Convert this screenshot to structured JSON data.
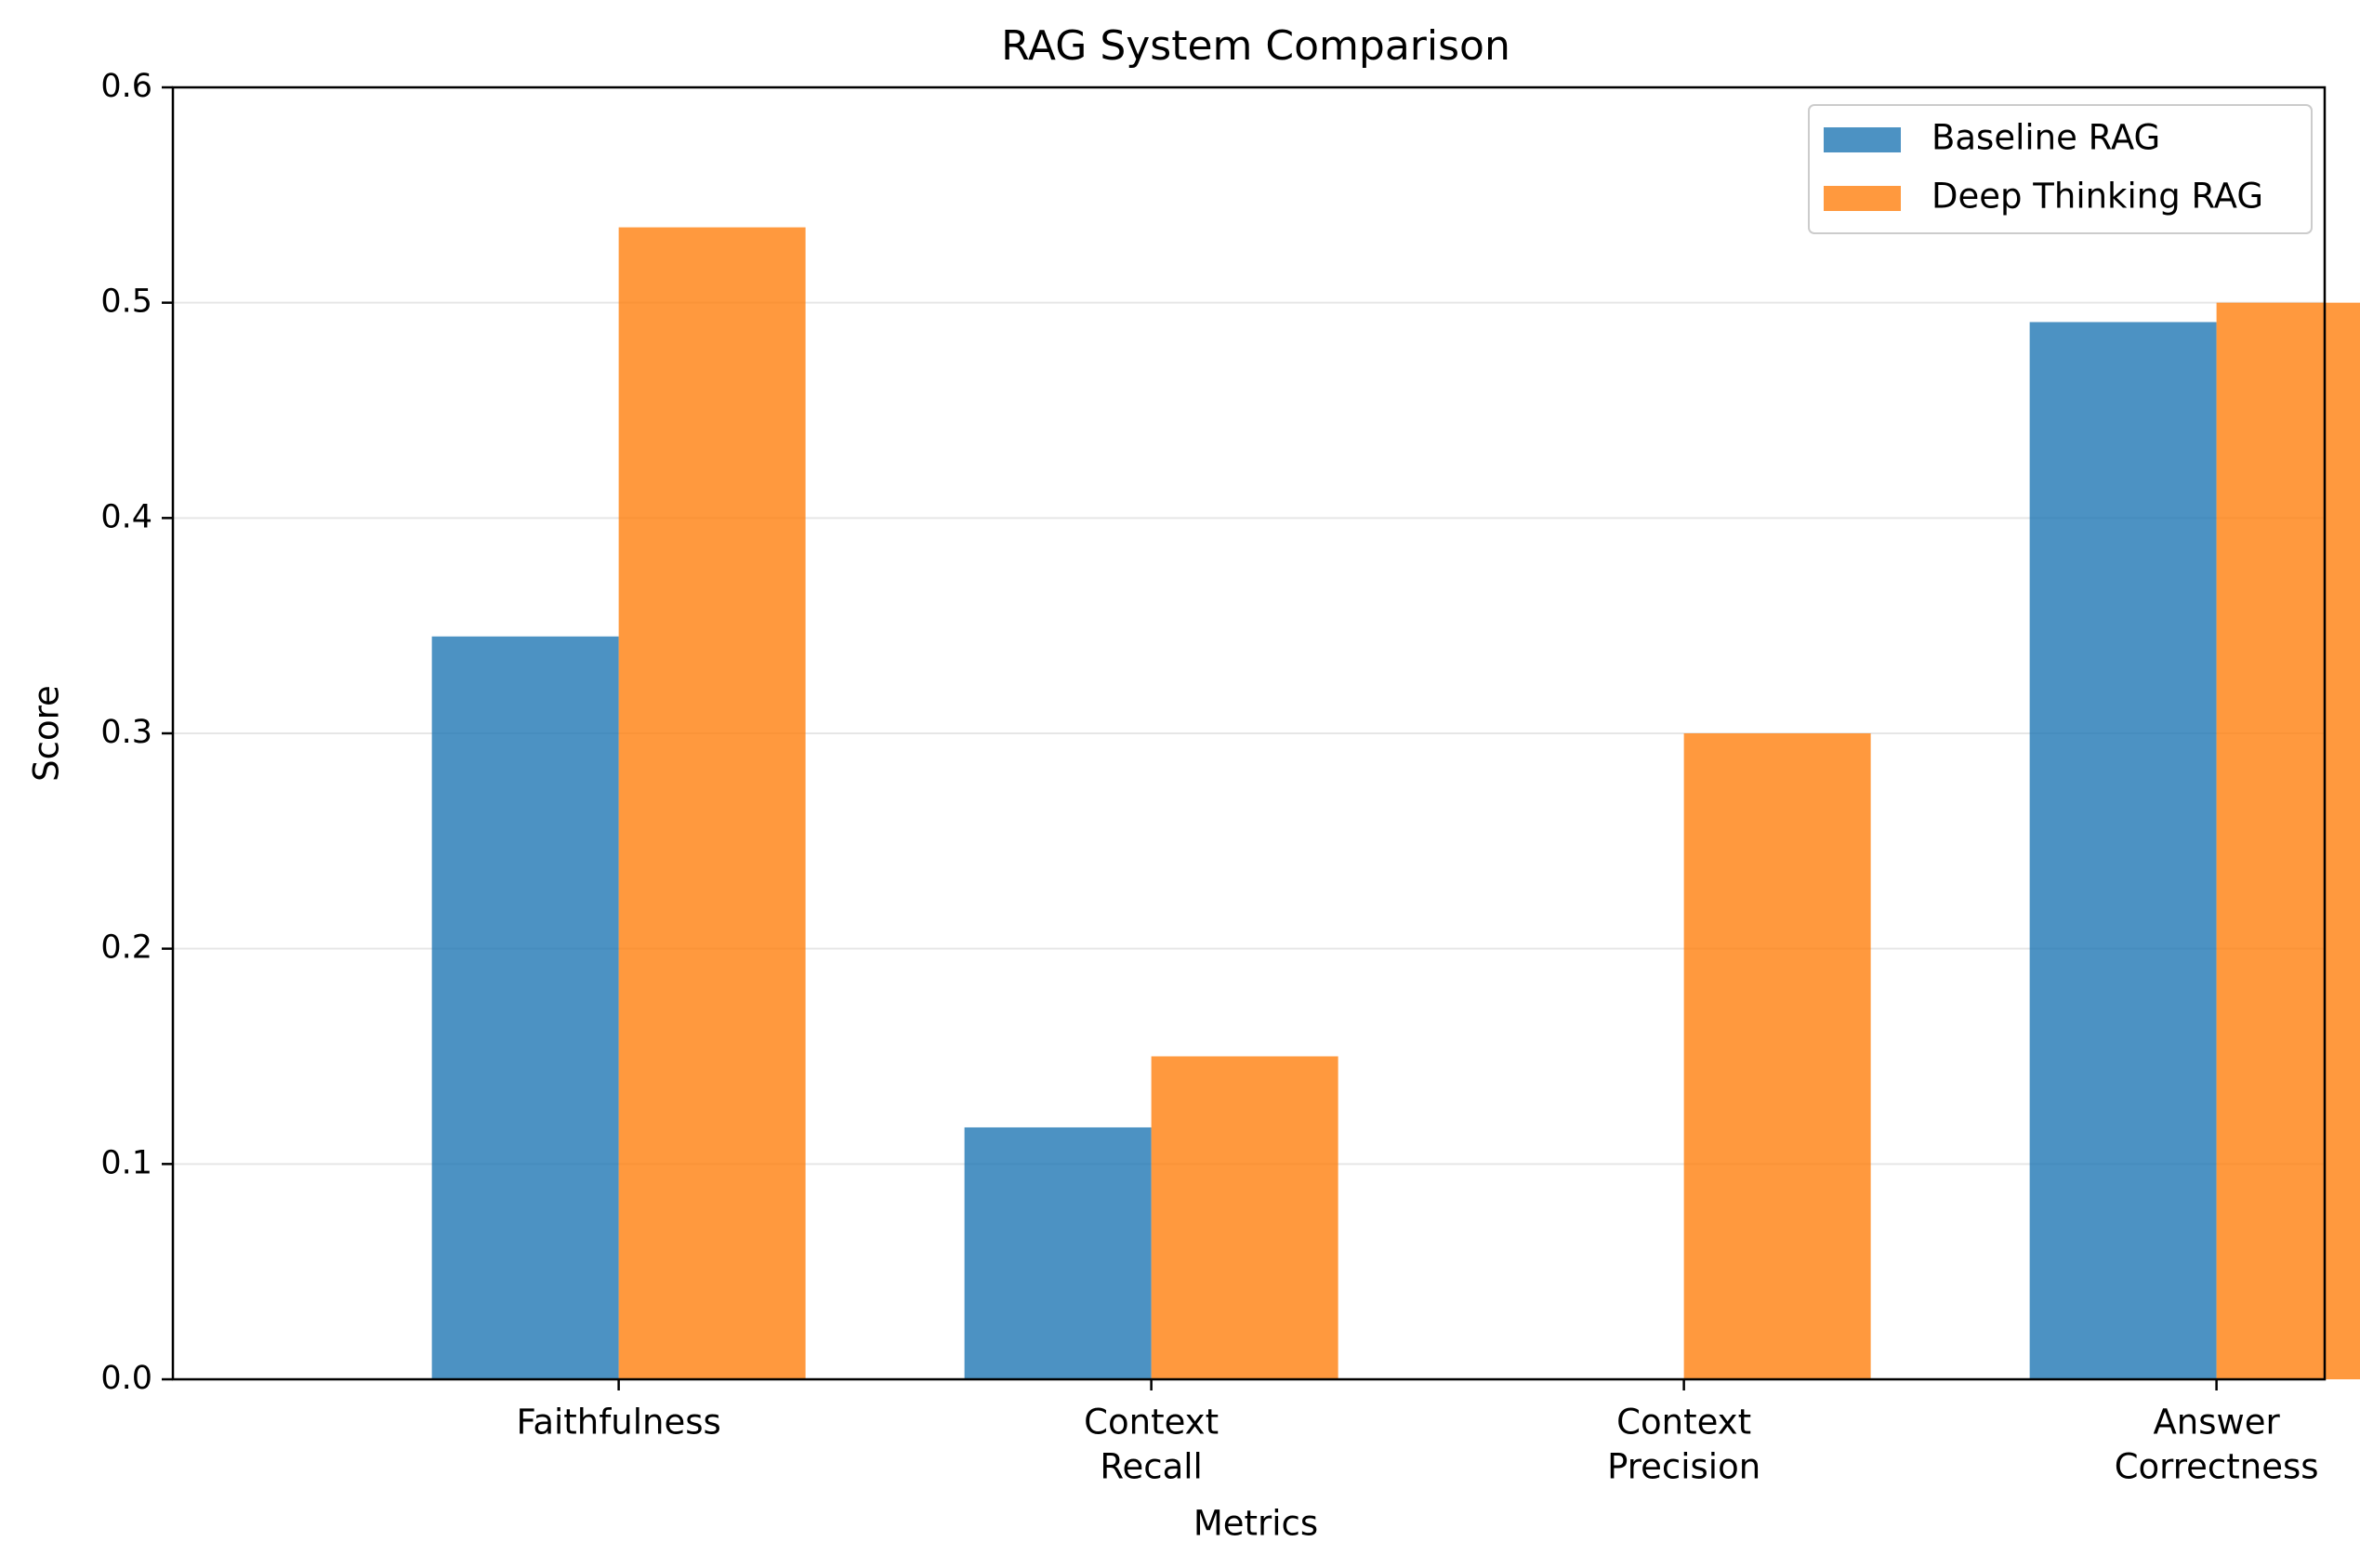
{
  "chart_data": {
    "type": "bar",
    "title": "RAG System Comparison",
    "xlabel": "Metrics",
    "ylabel": "Score",
    "categories": [
      [
        "Faithfulness"
      ],
      [
        "Context",
        "Recall"
      ],
      [
        "Context",
        "Precision"
      ],
      [
        "Answer",
        "Correctness"
      ]
    ],
    "series": [
      {
        "name": "Baseline RAG",
        "color": "#1f77b4",
        "values": [
          0.345,
          0.117,
          0.0,
          0.491
        ]
      },
      {
        "name": "Deep Thinking RAG",
        "color": "#ff7f0e",
        "values": [
          0.535,
          0.15,
          0.3,
          0.5
        ]
      }
    ],
    "ylim": [
      0,
      0.6
    ],
    "yticks": [
      "0.0",
      "0.1",
      "0.2",
      "0.3",
      "0.4",
      "0.5",
      "0.6"
    ],
    "grid": "y",
    "legend": "top-right"
  }
}
